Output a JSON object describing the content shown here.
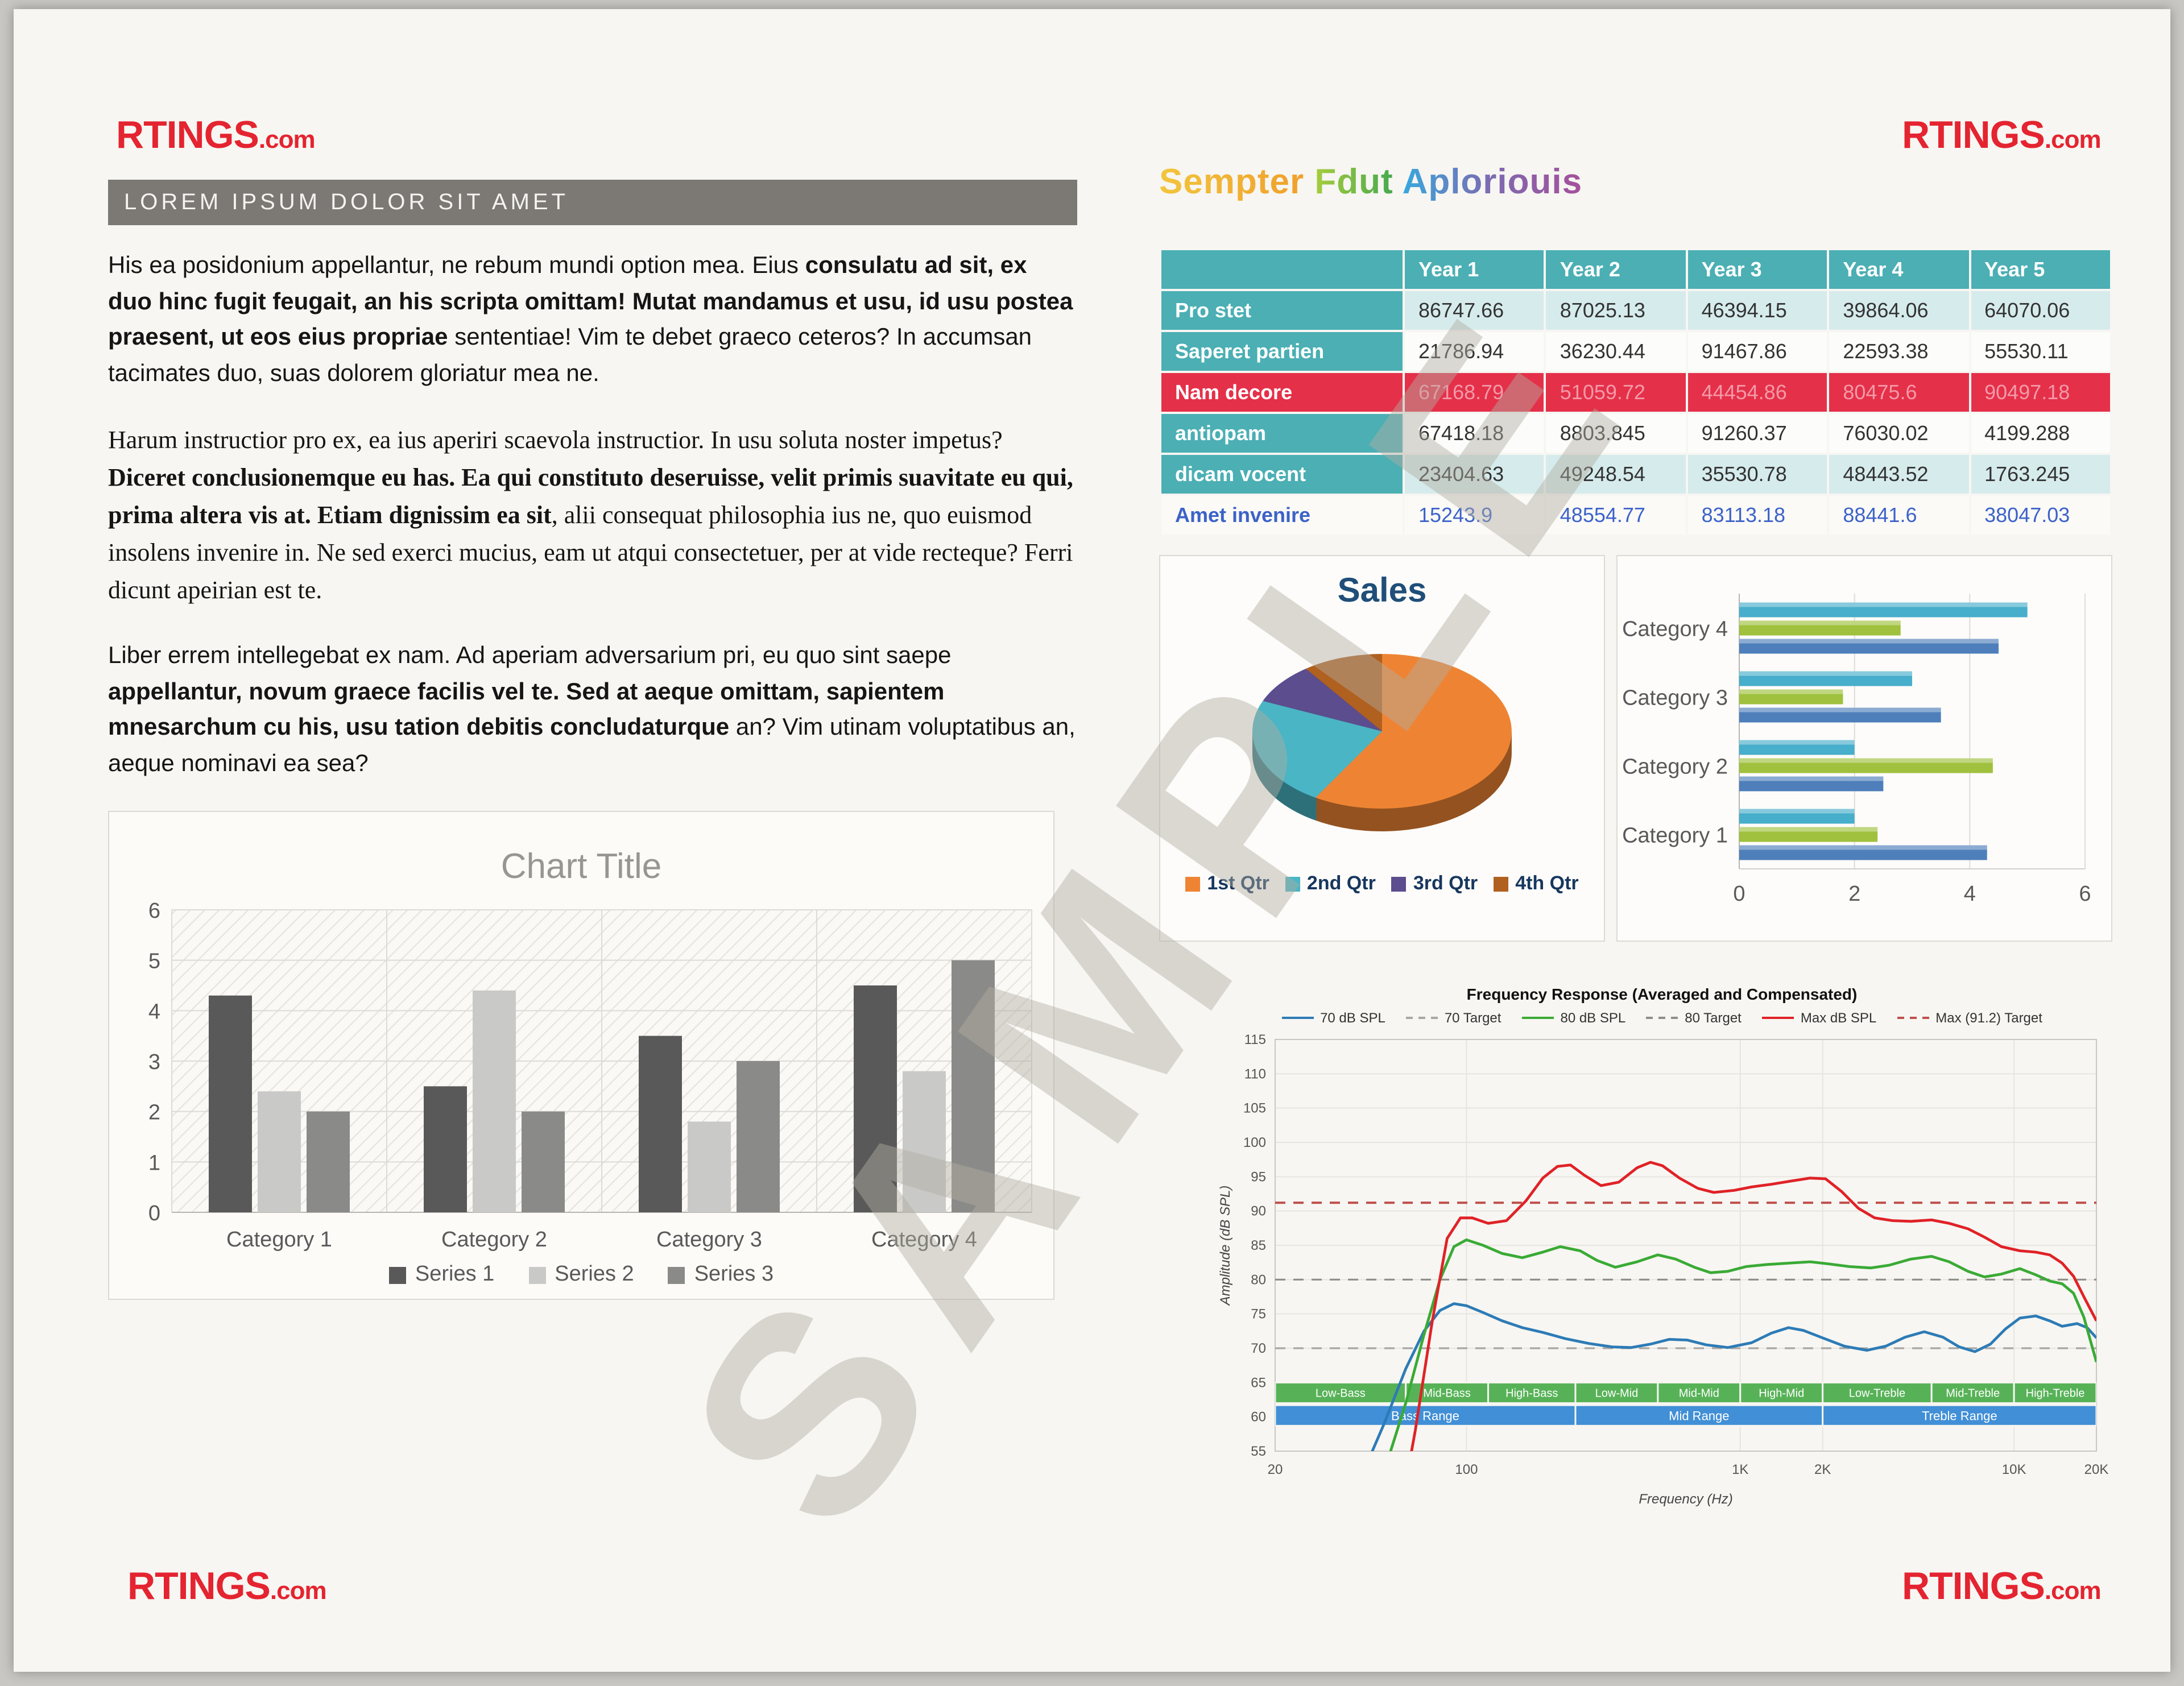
{
  "brand": {
    "name": "RTINGS",
    "suffix": ".com",
    "color": "#e42430"
  },
  "watermark": "SAMPLE",
  "left": {
    "section_header": "LOREM IPSUM DOLOR SIT AMET",
    "paragraphs": [
      {
        "font": "sans",
        "runs": [
          {
            "t": "His ea posidonium appellantur, ne rebum mundi option mea. Eius ",
            "b": 0
          },
          {
            "t": "consulatu ad sit, ex duo hinc fugit feugait, an his scripta omittam! Mutat mandamus et usu, id usu postea praesent, ut eos eius propriae",
            "b": 1
          },
          {
            "t": " sententiae! Vim te debet graeco ceteros? In accumsan tacimates duo, suas dolorem gloriatur mea ne.",
            "b": 0
          }
        ]
      },
      {
        "font": "serif",
        "runs": [
          {
            "t": "Harum instructior pro ex, ea ius aperiri scaevola instructior. In usu soluta noster impetus? ",
            "b": 0
          },
          {
            "t": "Diceret conclusionemque eu has. Ea qui constituto deseruisse, velit primis suavitate eu qui, prima altera vis at. Etiam dignissim ea sit",
            "b": 1
          },
          {
            "t": ", alii consequat philosophia ius ne, quo euismod insolens invenire in. Ne sed exerci mucius, eam ut atqui consectetuer, per at vide recteque? Ferri dicunt apeirian est te.",
            "b": 0
          }
        ]
      },
      {
        "font": "sans",
        "runs": [
          {
            "t": "Liber errem intellegebat ex nam. Ad aperiam adversarium pri, eu quo sint saepe ",
            "b": 0
          },
          {
            "t": "appellantur, novum graece facilis vel te. Sed at aeque omittam, sapientem mnesarchum cu his, usu tation debitis concludaturque",
            "b": 1
          },
          {
            "t": " an? Vim utinam voluptatibus an, aeque nominavi ea sea?",
            "b": 0
          }
        ]
      }
    ]
  },
  "right": {
    "heading": {
      "words": [
        "Sempter",
        "Fdut",
        "Aploriouis"
      ]
    },
    "table": {
      "columns": [
        "",
        "Year 1",
        "Year 2",
        "Year 3",
        "Year 4",
        "Year 5"
      ],
      "rows": [
        {
          "label": "Pro stet",
          "style": "light",
          "values": [
            "86747.66",
            "87025.13",
            "46394.15",
            "39864.06",
            "64070.06"
          ]
        },
        {
          "label": "Saperet partien",
          "style": "white",
          "values": [
            "21786.94",
            "36230.44",
            "91467.86",
            "22593.38",
            "55530.11"
          ]
        },
        {
          "label": "Nam decore",
          "style": "red",
          "values": [
            "67168.79",
            "51059.72",
            "44454.86",
            "80475.6",
            "90497.18"
          ]
        },
        {
          "label": "antiopam",
          "style": "white",
          "values": [
            "67418.18",
            "8803.845",
            "91260.37",
            "76030.02",
            "4199.288"
          ]
        },
        {
          "label": "dicam vocent",
          "style": "light",
          "values": [
            "23404.63",
            "49248.54",
            "35530.78",
            "48443.52",
            "1763.245"
          ]
        },
        {
          "label": "Amet invenire",
          "style": "blue",
          "values": [
            "15243.9",
            "48554.77",
            "83113.18",
            "88441.6",
            "38047.03"
          ]
        }
      ]
    }
  },
  "chart_data": [
    {
      "id": "column-chart",
      "type": "bar",
      "title": "Chart Title",
      "categories": [
        "Category 1",
        "Category 2",
        "Category 3",
        "Category 4"
      ],
      "series": [
        {
          "name": "Series 1",
          "color": "#595959",
          "values": [
            4.3,
            2.5,
            3.5,
            4.5
          ]
        },
        {
          "name": "Series 2",
          "color": "#c9c9c7",
          "values": [
            2.4,
            4.4,
            1.8,
            2.8
          ]
        },
        {
          "name": "Series 3",
          "color": "#8a8a88",
          "values": [
            2.0,
            2.0,
            3.0,
            5.0
          ]
        }
      ],
      "ylim": [
        0,
        6
      ],
      "yticks": [
        0,
        1,
        2,
        3,
        4,
        5,
        6
      ],
      "legend_position": "bottom"
    },
    {
      "id": "sales-pie",
      "type": "pie",
      "title": "Sales",
      "slices": [
        {
          "label": "1st Qtr",
          "value": 8.2,
          "color": "#ee8433"
        },
        {
          "label": "2nd Qtr",
          "value": 3.2,
          "color": "#4ab5c4"
        },
        {
          "label": "3rd Qtr",
          "value": 1.2,
          "color": "#5c4d8f"
        },
        {
          "label": "4th Qtr",
          "value": 1.4,
          "color": "#b0601f"
        }
      ],
      "legend_position": "bottom"
    },
    {
      "id": "category-hbar",
      "type": "bar-horizontal",
      "categories": [
        "Category 1",
        "Category 2",
        "Category 3",
        "Category 4"
      ],
      "series": [
        {
          "name": "Series 1",
          "color": "#4e7fbb",
          "values": [
            4.3,
            2.5,
            3.5,
            4.5
          ]
        },
        {
          "name": "Series 2",
          "color": "#9fc13d",
          "values": [
            2.4,
            4.4,
            1.8,
            2.8
          ]
        },
        {
          "name": "Series 3",
          "color": "#47aecb",
          "values": [
            2.0,
            2.0,
            3.0,
            5.0
          ]
        }
      ],
      "xlim": [
        0,
        6
      ],
      "xticks": [
        0,
        2,
        4,
        6
      ]
    },
    {
      "id": "frequency-response",
      "type": "line",
      "title": "Frequency Response (Averaged and Compensated)",
      "xlabel": "Frequency (Hz)",
      "ylabel": "Amplitude (dB SPL)",
      "xlim": [
        20,
        20000
      ],
      "ylim": [
        55,
        115
      ],
      "yticks": [
        55,
        60,
        65,
        70,
        75,
        80,
        85,
        90,
        95,
        100,
        105,
        110,
        115
      ],
      "xticks": [
        {
          "v": 20,
          "label": "20"
        },
        {
          "v": 100,
          "label": "100"
        },
        {
          "v": 1000,
          "label": "1K"
        },
        {
          "v": 2000,
          "label": "2K"
        },
        {
          "v": 10000,
          "label": "10K"
        },
        {
          "v": 20000,
          "label": "20K"
        }
      ],
      "targets": [
        {
          "name": "70 Target",
          "value": 70,
          "color": "#a9a7a2"
        },
        {
          "name": "80 Target",
          "value": 80,
          "color": "#8f8d88"
        },
        {
          "name": "Max (91.2) Target",
          "value": 91.2,
          "color": "#c0504d"
        }
      ],
      "legend": [
        {
          "name": "70 dB SPL",
          "color": "#2d7bb6",
          "dash": false
        },
        {
          "name": "70 Target",
          "color": "#a9a7a2",
          "dash": true
        },
        {
          "name": "80 dB SPL",
          "color": "#3aaa35",
          "dash": false
        },
        {
          "name": "80 Target",
          "color": "#8f8d88",
          "dash": true
        },
        {
          "name": "Max dB SPL",
          "color": "#e02227",
          "dash": false
        },
        {
          "name": "Max (91.2) Target",
          "color": "#c0504d",
          "dash": true
        }
      ],
      "series": [
        {
          "name": "70 dB SPL",
          "color": "#2d7bb6",
          "points": [
            [
              30,
              40
            ],
            [
              40,
              50
            ],
            [
              50,
              59
            ],
            [
              60,
              67
            ],
            [
              70,
              72.5
            ],
            [
              80,
              75.5
            ],
            [
              90,
              76.5
            ],
            [
              100,
              76.2
            ],
            [
              115,
              75.2
            ],
            [
              135,
              74
            ],
            [
              160,
              73
            ],
            [
              190,
              72.3
            ],
            [
              230,
              71.4
            ],
            [
              280,
              70.7
            ],
            [
              340,
              70.2
            ],
            [
              400,
              70.1
            ],
            [
              470,
              70.6
            ],
            [
              550,
              71.3
            ],
            [
              640,
              71.2
            ],
            [
              750,
              70.5
            ],
            [
              900,
              70.1
            ],
            [
              1100,
              70.8
            ],
            [
              1300,
              72.2
            ],
            [
              1500,
              73
            ],
            [
              1700,
              72.6
            ],
            [
              2000,
              71.5
            ],
            [
              2400,
              70.3
            ],
            [
              2900,
              69.7
            ],
            [
              3400,
              70.3
            ],
            [
              4000,
              71.6
            ],
            [
              4700,
              72.4
            ],
            [
              5500,
              71.6
            ],
            [
              6300,
              70.2
            ],
            [
              7200,
              69.5
            ],
            [
              8200,
              70.6
            ],
            [
              9300,
              72.8
            ],
            [
              10500,
              74.4
            ],
            [
              12000,
              74.7
            ],
            [
              13500,
              74
            ],
            [
              15000,
              73.2
            ],
            [
              17000,
              73.6
            ],
            [
              18500,
              73
            ],
            [
              20000,
              71.5
            ]
          ]
        },
        {
          "name": "80 dB SPL",
          "color": "#3aaa35",
          "points": [
            [
              40,
              42
            ],
            [
              50,
              52
            ],
            [
              60,
              62
            ],
            [
              70,
              72
            ],
            [
              80,
              80
            ],
            [
              90,
              84.8
            ],
            [
              100,
              85.8
            ],
            [
              115,
              85
            ],
            [
              135,
              83.8
            ],
            [
              160,
              83.2
            ],
            [
              190,
              84
            ],
            [
              220,
              84.8
            ],
            [
              260,
              84.2
            ],
            [
              300,
              82.8
            ],
            [
              350,
              81.8
            ],
            [
              420,
              82.6
            ],
            [
              500,
              83.6
            ],
            [
              580,
              83
            ],
            [
              680,
              81.8
            ],
            [
              780,
              81
            ],
            [
              900,
              81.2
            ],
            [
              1050,
              81.9
            ],
            [
              1250,
              82.2
            ],
            [
              1500,
              82.4
            ],
            [
              1800,
              82.6
            ],
            [
              2100,
              82.3
            ],
            [
              2500,
              81.9
            ],
            [
              3000,
              81.7
            ],
            [
              3500,
              82.1
            ],
            [
              4200,
              83
            ],
            [
              5000,
              83.4
            ],
            [
              5800,
              82.6
            ],
            [
              6800,
              81.2
            ],
            [
              7800,
              80.4
            ],
            [
              9000,
              80.8
            ],
            [
              10500,
              81.6
            ],
            [
              12000,
              80.7
            ],
            [
              13500,
              79.8
            ],
            [
              15000,
              79.4
            ],
            [
              16500,
              78
            ],
            [
              18000,
              74.5
            ],
            [
              20000,
              68
            ]
          ]
        },
        {
          "name": "Max dB SPL",
          "color": "#e02227",
          "points": [
            [
              55,
              42
            ],
            [
              65,
              58
            ],
            [
              75,
              74
            ],
            [
              85,
              86
            ],
            [
              95,
              89
            ],
            [
              105,
              89
            ],
            [
              120,
              88.2
            ],
            [
              140,
              88.6
            ],
            [
              165,
              91.5
            ],
            [
              190,
              94.8
            ],
            [
              215,
              96.5
            ],
            [
              240,
              96.7
            ],
            [
              270,
              95.2
            ],
            [
              310,
              93.7
            ],
            [
              360,
              94.2
            ],
            [
              420,
              96.3
            ],
            [
              470,
              97.1
            ],
            [
              520,
              96.6
            ],
            [
              600,
              94.8
            ],
            [
              700,
              93.3
            ],
            [
              800,
              92.7
            ],
            [
              950,
              93
            ],
            [
              1100,
              93.5
            ],
            [
              1300,
              93.9
            ],
            [
              1550,
              94.4
            ],
            [
              1800,
              94.8
            ],
            [
              2050,
              94.7
            ],
            [
              2350,
              92.8
            ],
            [
              2700,
              90.4
            ],
            [
              3100,
              89
            ],
            [
              3600,
              88.6
            ],
            [
              4200,
              88.5
            ],
            [
              5000,
              88.7
            ],
            [
              5800,
              88.2
            ],
            [
              6800,
              87.4
            ],
            [
              7800,
              86.2
            ],
            [
              9000,
              84.8
            ],
            [
              10500,
              84.2
            ],
            [
              12000,
              84
            ],
            [
              13500,
              83.6
            ],
            [
              15000,
              82.4
            ],
            [
              16500,
              80.5
            ],
            [
              18000,
              77.5
            ],
            [
              20000,
              74
            ]
          ]
        }
      ],
      "bands": {
        "sub": [
          {
            "label": "Low-Bass",
            "from": 20,
            "to": 60
          },
          {
            "label": "Mid-Bass",
            "from": 60,
            "to": 120
          },
          {
            "label": "High-Bass",
            "from": 120,
            "to": 250
          },
          {
            "label": "Low-Mid",
            "from": 250,
            "to": 500
          },
          {
            "label": "Mid-Mid",
            "from": 500,
            "to": 1000
          },
          {
            "label": "High-Mid",
            "from": 1000,
            "to": 2000
          },
          {
            "label": "Low-Treble",
            "from": 2000,
            "to": 5000
          },
          {
            "label": "Mid-Treble",
            "from": 5000,
            "to": 10000
          },
          {
            "label": "High-Treble",
            "from": 10000,
            "to": 20000
          }
        ],
        "main": [
          {
            "label": "Bass Range",
            "from": 20,
            "to": 250
          },
          {
            "label": "Mid Range",
            "from": 250,
            "to": 2000
          },
          {
            "label": "Treble Range",
            "from": 2000,
            "to": 20000
          }
        ]
      }
    }
  ]
}
